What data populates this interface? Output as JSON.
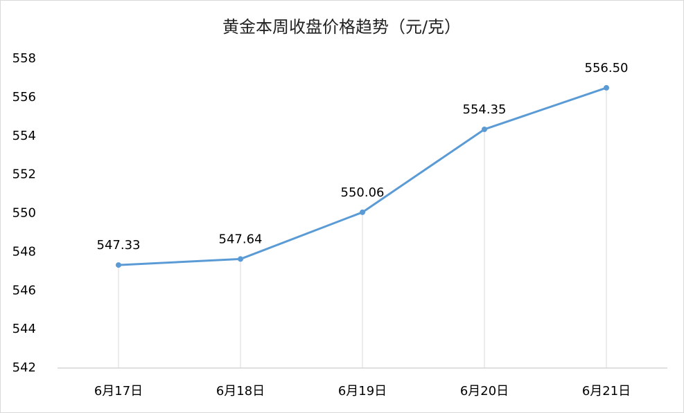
{
  "chart_data": {
    "type": "line",
    "title": "黄金本周收盘价格趋势（元/克）",
    "categories": [
      "6月17日",
      "6月18日",
      "6月19日",
      "6月20日",
      "6月21日"
    ],
    "values": [
      547.33,
      547.64,
      550.06,
      554.35,
      556.5
    ],
    "value_labels": [
      "547.33",
      "547.64",
      "550.06",
      "554.35",
      "556.50"
    ],
    "color": "#5b9bd5",
    "ylim": [
      542,
      558
    ],
    "yticks": [
      542,
      544,
      546,
      548,
      550,
      552,
      554,
      556,
      558
    ],
    "drop_lines": true
  }
}
